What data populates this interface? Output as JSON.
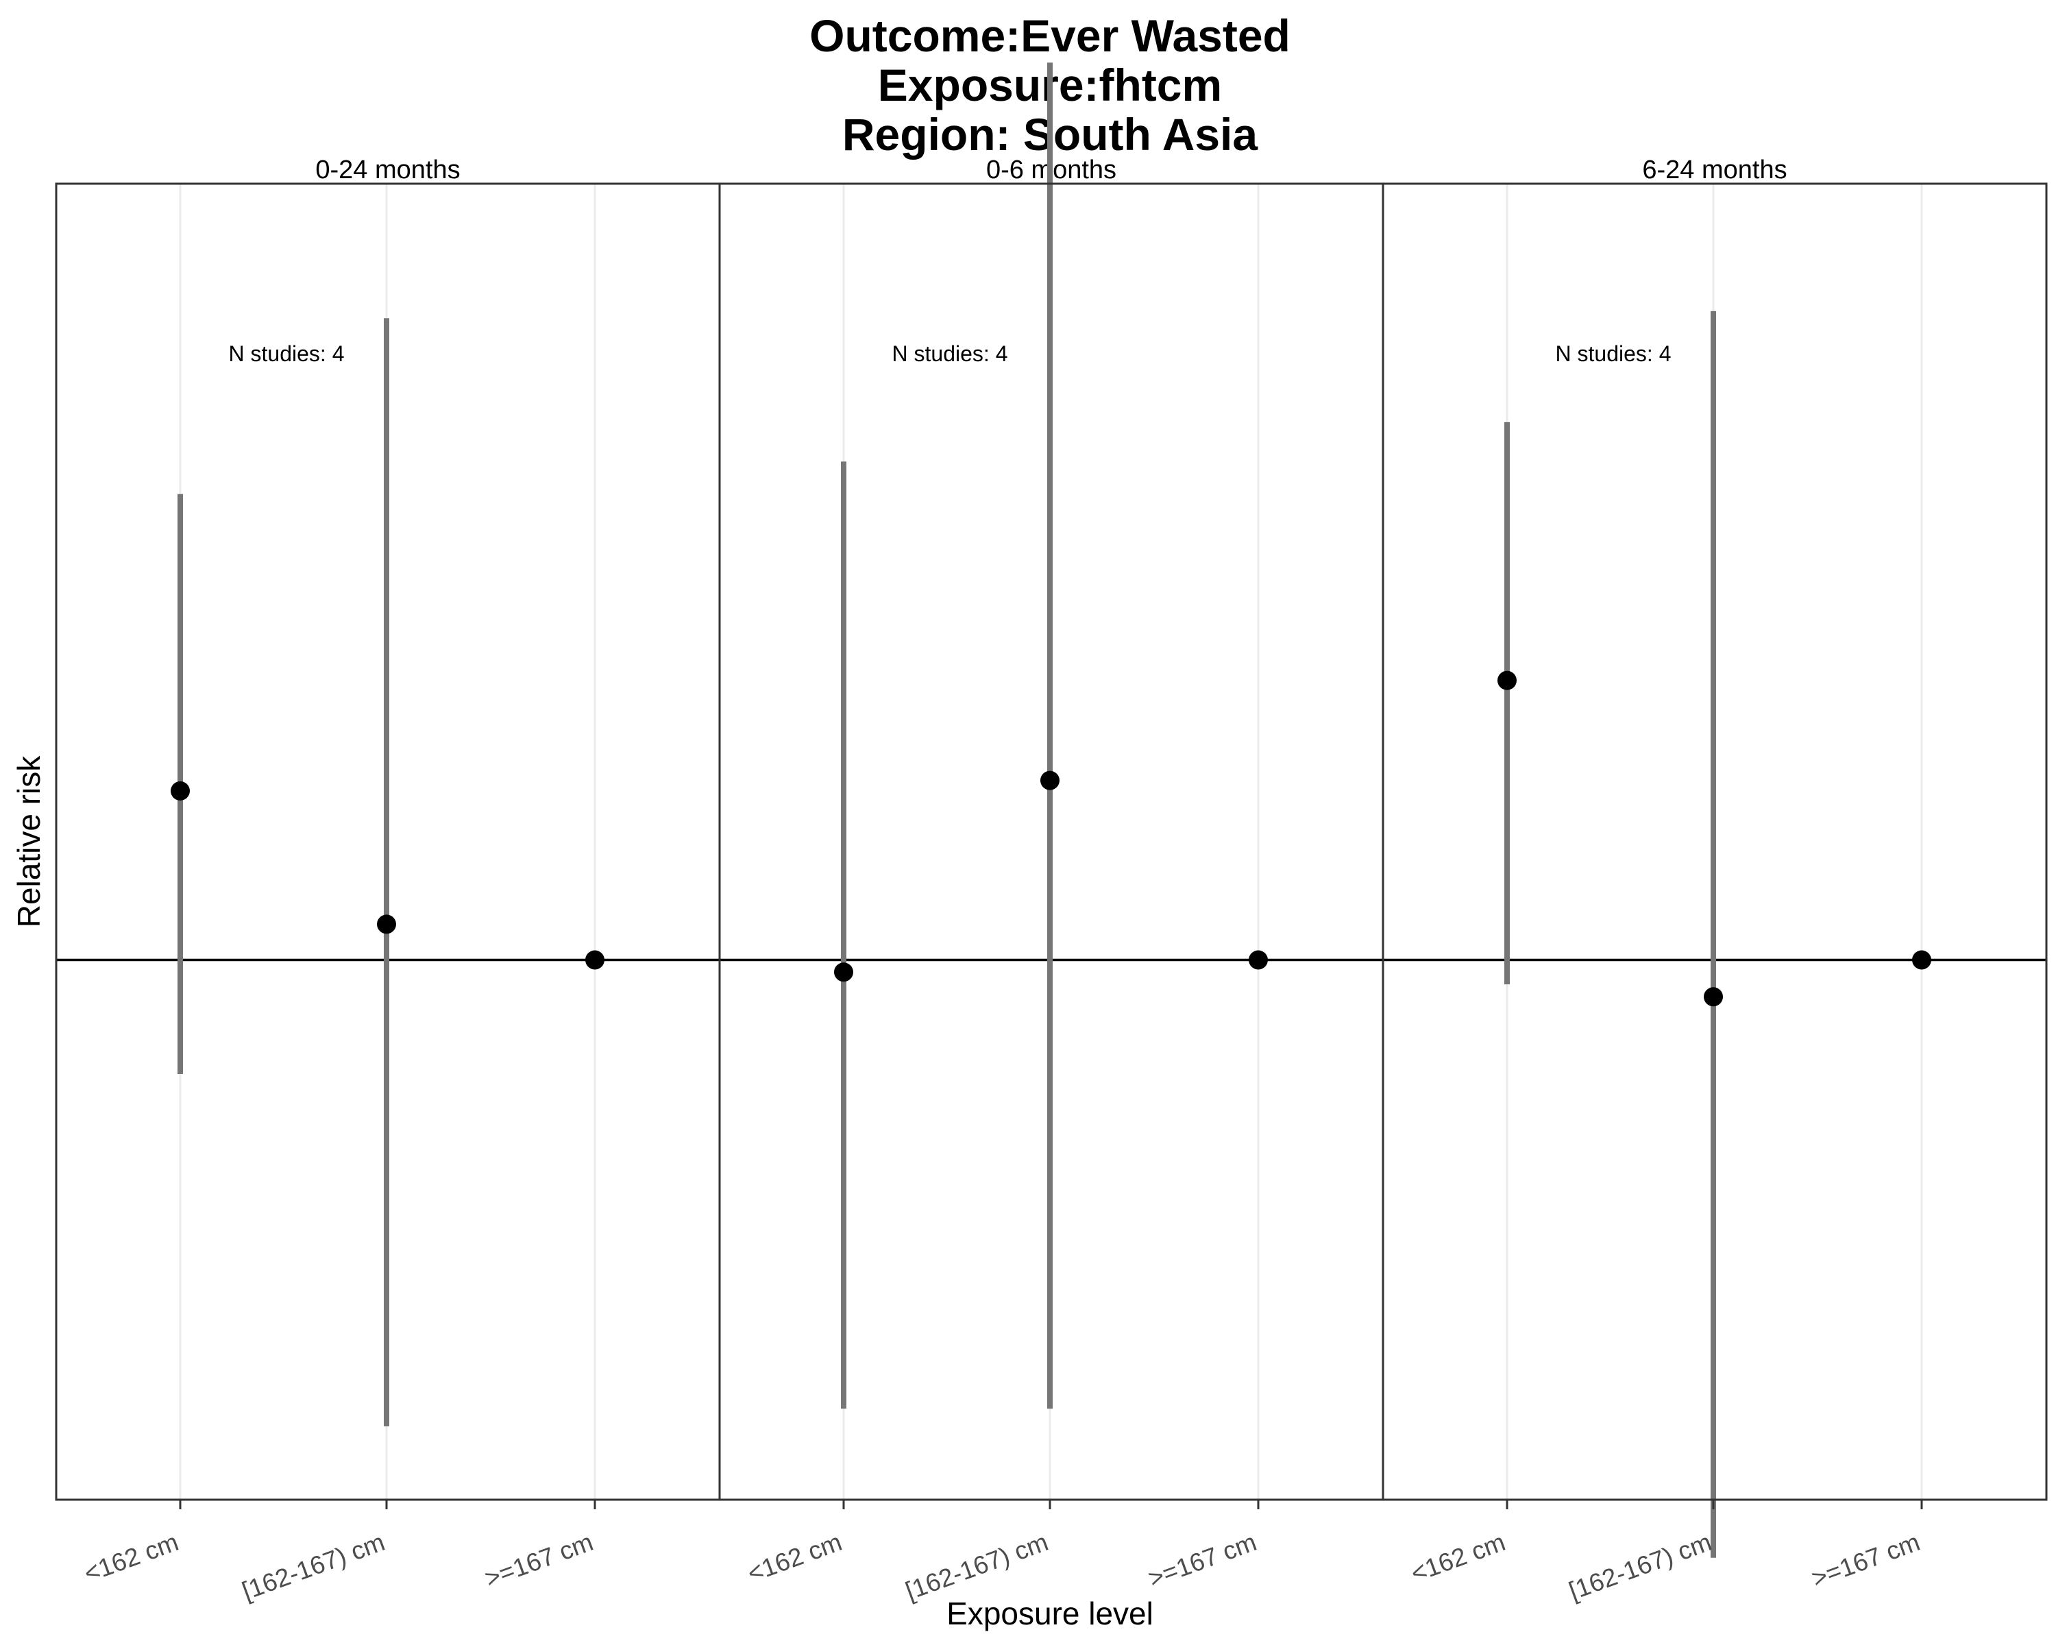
{
  "chart_data": {
    "type": "scatter",
    "title": [
      "Outcome:Ever Wasted",
      "Exposure:fhtcm",
      "Region: South Asia"
    ],
    "xlabel": "Exposure level",
    "ylabel": "Relative risk",
    "categories": [
      "<162 cm",
      "[162-167) cm",
      ">=167 cm"
    ],
    "reference_line": 1,
    "ylim": [
      0.64,
      1.9
    ],
    "y_scale": "log",
    "grid": "vertical major only",
    "panels": [
      {
        "strip": "0-24 months",
        "annotation": "N studies: 4",
        "points": [
          {
            "category": "<162 cm",
            "estimate": 1.15,
            "ci_lower": 0.91,
            "ci_upper": 1.47
          },
          {
            "category": "[162-167) cm",
            "estimate": 1.03,
            "ci_lower": 0.68,
            "ci_upper": 1.7
          },
          {
            "category": ">=167 cm",
            "estimate": 1.0,
            "ci_lower": 1.0,
            "ci_upper": 1.0
          }
        ]
      },
      {
        "strip": "0-6 months",
        "annotation": "N studies: 4",
        "points": [
          {
            "category": "<162 cm",
            "estimate": 0.99,
            "ci_lower": 0.69,
            "ci_upper": 1.51
          },
          {
            "category": "[162-167) cm",
            "estimate": 1.16,
            "ci_lower": 0.69,
            "ci_upper": 2.1
          },
          {
            "category": ">=167 cm",
            "estimate": 1.0,
            "ci_lower": 1.0,
            "ci_upper": 1.0
          }
        ]
      },
      {
        "strip": "6-24 months",
        "annotation": "N studies: 4",
        "points": [
          {
            "category": "<162 cm",
            "estimate": 1.26,
            "ci_lower": 0.98,
            "ci_upper": 1.56
          },
          {
            "category": "[162-167) cm",
            "estimate": 0.97,
            "ci_lower": 0.61,
            "ci_upper": 1.71
          },
          {
            "category": ">=167 cm",
            "estimate": 1.0,
            "ci_lower": 1.0,
            "ci_upper": 1.0
          }
        ]
      }
    ]
  },
  "colors": {
    "point": "#000000",
    "errorbar": "#767676",
    "reference_line": "#000000",
    "gridline": "#ebebeb",
    "panel_border": "#333333",
    "tick_label": "#4d4d4d"
  }
}
